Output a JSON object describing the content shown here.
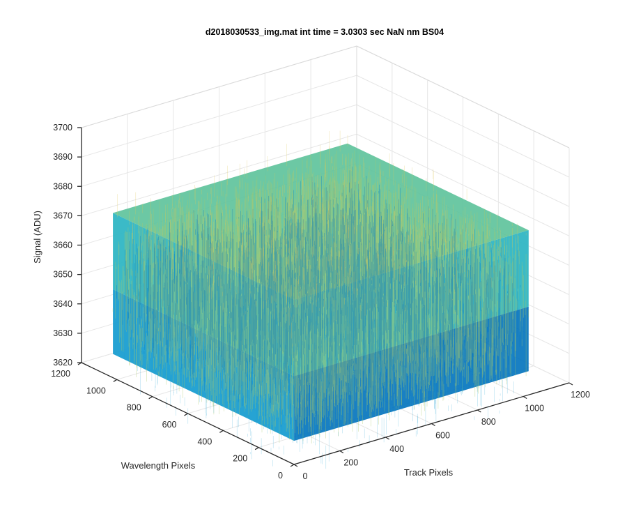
{
  "chart_data": {
    "type": "surface",
    "title": "d2018030533_img.mat int time = 3.0303 sec  NaN nm BS04",
    "xlabel": "Track Pixels",
    "ylabel": "Wavelength Pixels",
    "zlabel": "Signal (ADU)",
    "xlim": [
      0,
      1200
    ],
    "ylim": [
      0,
      1200
    ],
    "zlim": [
      3620,
      3700
    ],
    "xticks": [
      "0",
      "200",
      "400",
      "600",
      "800",
      "1000",
      "1200"
    ],
    "yticks": [
      "0",
      "200",
      "400",
      "600",
      "800",
      "1000",
      "1200"
    ],
    "zticks": [
      "3620",
      "3630",
      "3640",
      "3650",
      "3660",
      "3670",
      "3680",
      "3690",
      "3700"
    ],
    "grid": true,
    "data_extent": {
      "x": [
        1,
        1024
      ],
      "y": [
        1,
        1024
      ]
    },
    "signal_mean": 3650,
    "signal_noise_band": [
      3628,
      3676
    ],
    "colormap": [
      "#0072bd",
      "#1a9ed1",
      "#30b6c4",
      "#5cc29a",
      "#a8c86a",
      "#e0c85a"
    ]
  }
}
